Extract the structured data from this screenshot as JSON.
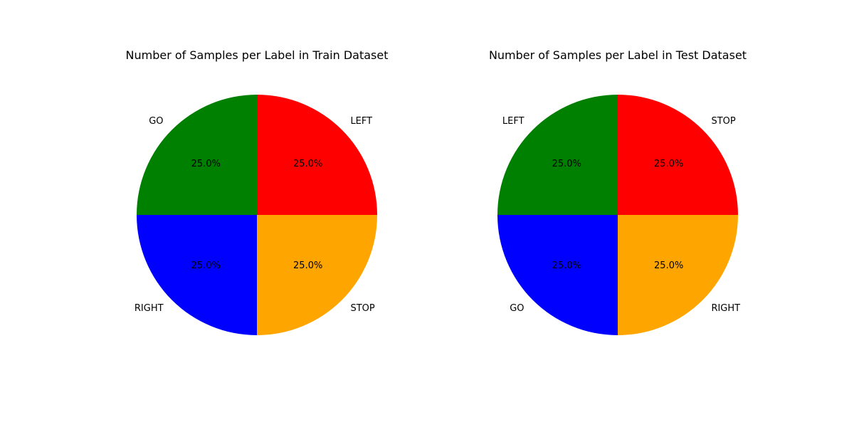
{
  "chart_data": [
    {
      "type": "pie",
      "title": "Number of Samples per Label in Train Dataset",
      "categories": [
        "LEFT",
        "GO",
        "RIGHT",
        "STOP"
      ],
      "values": [
        25,
        25,
        25,
        25
      ],
      "value_labels": [
        "25.0%",
        "25.0%",
        "25.0%",
        "25.0%"
      ],
      "colors": [
        "#ff0000",
        "#008000",
        "#0000ff",
        "#ffa500"
      ],
      "start_angle_deg": 0,
      "direction": "counterclockwise"
    },
    {
      "type": "pie",
      "title": "Number of Samples per Label in Test Dataset",
      "categories": [
        "STOP",
        "LEFT",
        "GO",
        "RIGHT"
      ],
      "values": [
        25,
        25,
        25,
        25
      ],
      "value_labels": [
        "25.0%",
        "25.0%",
        "25.0%",
        "25.0%"
      ],
      "colors": [
        "#ff0000",
        "#008000",
        "#0000ff",
        "#ffa500"
      ],
      "start_angle_deg": 0,
      "direction": "counterclockwise"
    }
  ]
}
